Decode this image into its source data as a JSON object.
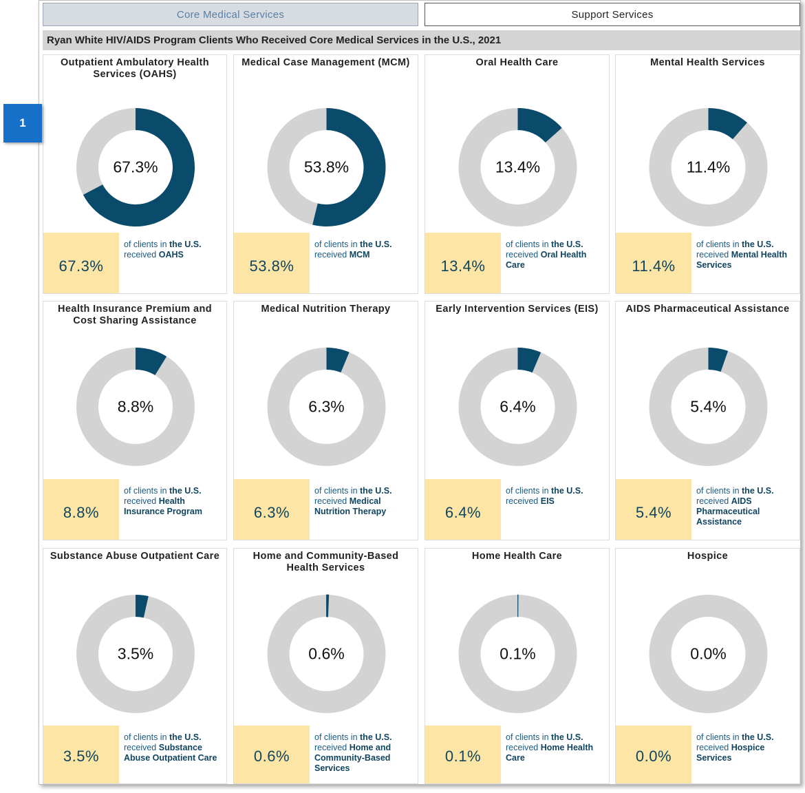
{
  "tabs": {
    "core_label": "Core Medical Services",
    "support_label": "Support Services"
  },
  "section_title": "Ryan White HIV/AIDS Program Clients Who Received Core Medical Services in the U.S., 2021",
  "badge_label": "1",
  "colors": {
    "filled": "#0a4a6b",
    "remaining": "#d3d3d3",
    "stat_box": "#fce5a5"
  },
  "chart_data": [
    {
      "type": "pie",
      "title": "Outpatient Ambulatory Health Services (OAHS)",
      "value": 67.3,
      "label": "67.3%",
      "desc_pre": "of clients in ",
      "desc_hl1": "the U.S.",
      "desc_mid": " received ",
      "desc_hl2": "OAHS"
    },
    {
      "type": "pie",
      "title": "Medical Case Management (MCM)",
      "value": 53.8,
      "label": "53.8%",
      "desc_pre": "of clients in ",
      "desc_hl1": "the U.S.",
      "desc_mid": " received ",
      "desc_hl2": "MCM"
    },
    {
      "type": "pie",
      "title": "Oral Health Care",
      "value": 13.4,
      "label": "13.4%",
      "desc_pre": "of clients in ",
      "desc_hl1": "the U.S.",
      "desc_mid": " received ",
      "desc_hl2": "Oral Health Care"
    },
    {
      "type": "pie",
      "title": "Mental Health Services",
      "value": 11.4,
      "label": "11.4%",
      "desc_pre": "of clients in ",
      "desc_hl1": "the U.S.",
      "desc_mid": " received ",
      "desc_hl2": "Mental Health Services"
    },
    {
      "type": "pie",
      "title": "Health Insurance Premium and Cost Sharing Assistance",
      "value": 8.8,
      "label": "8.8%",
      "desc_pre": "of clients in ",
      "desc_hl1": "the U.S.",
      "desc_mid": " received ",
      "desc_hl2": "Health Insurance Program"
    },
    {
      "type": "pie",
      "title": "Medical Nutrition Therapy",
      "value": 6.3,
      "label": "6.3%",
      "desc_pre": "of clients in ",
      "desc_hl1": "the U.S.",
      "desc_mid": " received ",
      "desc_hl2": "Medical Nutrition Therapy"
    },
    {
      "type": "pie",
      "title": "Early Intervention Services (EIS)",
      "value": 6.4,
      "label": "6.4%",
      "desc_pre": "of clients in ",
      "desc_hl1": "the U.S.",
      "desc_mid": " received ",
      "desc_hl2": "EIS"
    },
    {
      "type": "pie",
      "title": "AIDS Pharmaceutical Assistance",
      "value": 5.4,
      "label": "5.4%",
      "desc_pre": "of clients in ",
      "desc_hl1": "the U.S.",
      "desc_mid": " received ",
      "desc_hl2": "AIDS Pharmaceutical Assistance"
    },
    {
      "type": "pie",
      "title": "Substance Abuse Outpatient Care",
      "value": 3.5,
      "label": "3.5%",
      "desc_pre": "of clients in ",
      "desc_hl1": "the U.S.",
      "desc_mid": " received ",
      "desc_hl2": "Substance Abuse Outpatient Care"
    },
    {
      "type": "pie",
      "title": "Home and Community-Based Health Services",
      "value": 0.6,
      "label": "0.6%",
      "desc_pre": "of clients in ",
      "desc_hl1": "the U.S.",
      "desc_mid": " received ",
      "desc_hl2": "Home and Community-Based Services"
    },
    {
      "type": "pie",
      "title": "Home Health Care",
      "value": 0.1,
      "label": "0.1%",
      "desc_pre": "of clients in ",
      "desc_hl1": "the U.S.",
      "desc_mid": " received ",
      "desc_hl2": "Home Health Care"
    },
    {
      "type": "pie",
      "title": "Hospice",
      "value": 0.0,
      "label": "0.0%",
      "desc_pre": "of clients in ",
      "desc_hl1": "the U.S.",
      "desc_mid": " received ",
      "desc_hl2": "Hospice Services"
    }
  ]
}
